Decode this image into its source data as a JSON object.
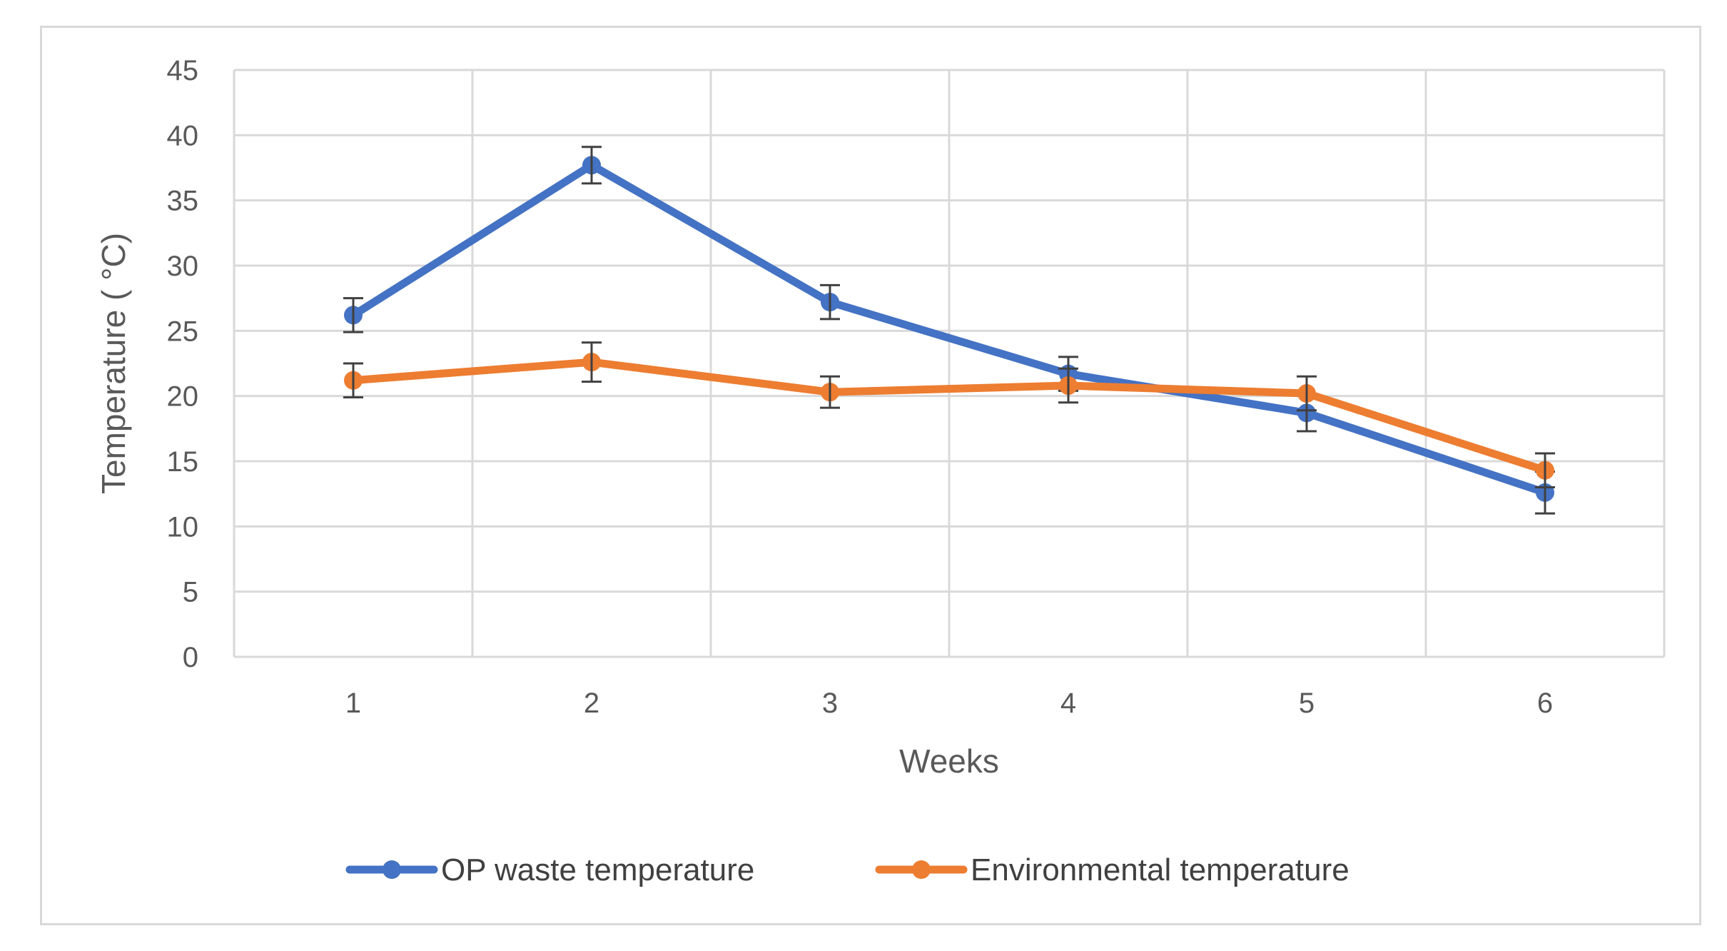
{
  "chart_data": {
    "type": "line",
    "title": "",
    "xlabel": "Weeks",
    "ylabel": "Temperature ( °C)",
    "categories": [
      "1",
      "2",
      "3",
      "4",
      "5",
      "6"
    ],
    "ylim": [
      0,
      45
    ],
    "yticks": [
      "0",
      "5",
      "10",
      "15",
      "20",
      "25",
      "30",
      "35",
      "40",
      "45"
    ],
    "grid": true,
    "legend_position": "bottom",
    "series": [
      {
        "name": "OP waste temperature",
        "color": "#4472c4",
        "values": [
          26.2,
          37.7,
          27.2,
          21.7,
          18.7,
          12.6
        ],
        "errors": [
          1.3,
          1.4,
          1.3,
          1.3,
          1.4,
          1.6
        ]
      },
      {
        "name": "Environmental temperature",
        "color": "#ed7d31",
        "values": [
          21.2,
          22.6,
          20.3,
          20.8,
          20.2,
          14.3
        ],
        "errors": [
          1.3,
          1.5,
          1.2,
          1.3,
          1.3,
          1.3
        ]
      }
    ]
  }
}
